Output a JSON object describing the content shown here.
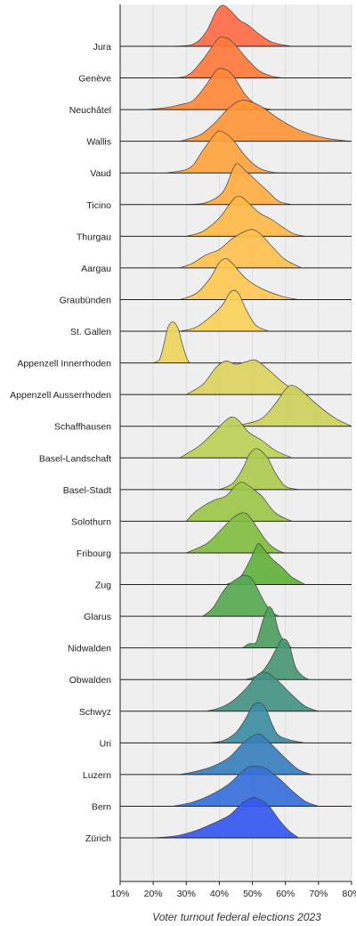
{
  "chart_data": {
    "type": "ridgeline",
    "title": "",
    "xlabel": "Voter turnout federal elections 2023",
    "ylabel": "",
    "xlim": [
      10,
      80
    ],
    "x_ticks": [
      "10%",
      "20%",
      "30%",
      "40%",
      "50%",
      "60%",
      "70%",
      "80%"
    ],
    "grid": true,
    "series": [
      {
        "name": "Jura",
        "color": "#FF6B47",
        "values": [
          [
            25,
            0
          ],
          [
            32,
            0.05
          ],
          [
            36,
            0.35
          ],
          [
            39,
            0.85
          ],
          [
            41,
            1.0
          ],
          [
            43,
            0.9
          ],
          [
            46,
            0.65
          ],
          [
            49,
            0.5
          ],
          [
            52,
            0.3
          ],
          [
            56,
            0.1
          ],
          [
            62,
            0
          ]
        ]
      },
      {
        "name": "Genève",
        "color": "#FF7A3D",
        "values": [
          [
            22,
            0
          ],
          [
            30,
            0.05
          ],
          [
            35,
            0.45
          ],
          [
            39,
            0.9
          ],
          [
            41,
            1.0
          ],
          [
            44,
            0.88
          ],
          [
            48,
            0.5
          ],
          [
            52,
            0.18
          ],
          [
            56,
            0.04
          ],
          [
            60,
            0
          ]
        ]
      },
      {
        "name": "Neuchâtel",
        "color": "#FF8838",
        "values": [
          [
            18,
            0
          ],
          [
            24,
            0.05
          ],
          [
            28,
            0.12
          ],
          [
            32,
            0.22
          ],
          [
            36,
            0.6
          ],
          [
            39,
            0.95
          ],
          [
            41,
            1.0
          ],
          [
            44,
            0.85
          ],
          [
            48,
            0.35
          ],
          [
            52,
            0.08
          ],
          [
            56,
            0
          ]
        ]
      },
      {
        "name": "Wallis",
        "color": "#FF9638",
        "values": [
          [
            28,
            0
          ],
          [
            34,
            0.15
          ],
          [
            38,
            0.4
          ],
          [
            43,
            0.82
          ],
          [
            47,
            1.0
          ],
          [
            52,
            0.88
          ],
          [
            58,
            0.55
          ],
          [
            64,
            0.28
          ],
          [
            72,
            0.08
          ],
          [
            80,
            0
          ]
        ]
      },
      {
        "name": "Vaud",
        "color": "#FFA33D",
        "values": [
          [
            24,
            0
          ],
          [
            31,
            0.12
          ],
          [
            35,
            0.55
          ],
          [
            39,
            0.98
          ],
          [
            41,
            1.0
          ],
          [
            44,
            0.82
          ],
          [
            48,
            0.4
          ],
          [
            52,
            0.12
          ],
          [
            56,
            0.02
          ],
          [
            60,
            0
          ]
        ]
      },
      {
        "name": "Ticino",
        "color": "#FFAE42",
        "values": [
          [
            30,
            0
          ],
          [
            36,
            0.05
          ],
          [
            41,
            0.3
          ],
          [
            44,
            0.85
          ],
          [
            45.5,
            1.0
          ],
          [
            48,
            0.82
          ],
          [
            51,
            0.6
          ],
          [
            55,
            0.3
          ],
          [
            58,
            0.08
          ],
          [
            62,
            0
          ]
        ]
      },
      {
        "name": "Thurgau",
        "color": "#FFB848",
        "values": [
          [
            30,
            0
          ],
          [
            35,
            0.12
          ],
          [
            40,
            0.45
          ],
          [
            44,
            0.88
          ],
          [
            46,
            0.98
          ],
          [
            48,
            0.88
          ],
          [
            52,
            0.58
          ],
          [
            56,
            0.4
          ],
          [
            62,
            0.08
          ],
          [
            66,
            0
          ]
        ]
      },
      {
        "name": "Aargau",
        "color": "#FFC04F",
        "values": [
          [
            28,
            0
          ],
          [
            32,
            0.12
          ],
          [
            36,
            0.32
          ],
          [
            40,
            0.45
          ],
          [
            44,
            0.72
          ],
          [
            49,
            0.93
          ],
          [
            52,
            0.86
          ],
          [
            56,
            0.52
          ],
          [
            60,
            0.2
          ],
          [
            65,
            0
          ]
        ]
      },
      {
        "name": "Graubünden",
        "color": "#FFC855",
        "values": [
          [
            28,
            0
          ],
          [
            33,
            0.15
          ],
          [
            37,
            0.5
          ],
          [
            40,
            0.9
          ],
          [
            42,
            1.0
          ],
          [
            44,
            0.88
          ],
          [
            48,
            0.52
          ],
          [
            53,
            0.26
          ],
          [
            59,
            0.08
          ],
          [
            64,
            0
          ]
        ]
      },
      {
        "name": "St. Gallen",
        "color": "#F8D05A",
        "values": [
          [
            28,
            0
          ],
          [
            33,
            0.1
          ],
          [
            38,
            0.4
          ],
          [
            41,
            0.65
          ],
          [
            43,
            0.92
          ],
          [
            44.5,
            1.0
          ],
          [
            46,
            0.9
          ],
          [
            48,
            0.55
          ],
          [
            51,
            0.15
          ],
          [
            55,
            0
          ]
        ]
      },
      {
        "name": "Appenzell Innerrhoden",
        "color": "#EDD55C",
        "values": [
          [
            20,
            0
          ],
          [
            22,
            0.1
          ],
          [
            23.5,
            0.55
          ],
          [
            24.5,
            0.88
          ],
          [
            26,
            1.0
          ],
          [
            27.5,
            0.85
          ],
          [
            28.5,
            0.55
          ],
          [
            30,
            0.15
          ],
          [
            31,
            0
          ]
        ]
      },
      {
        "name": "Appenzell Ausserrhoden",
        "color": "#DCD45E",
        "values": [
          [
            30,
            0
          ],
          [
            35,
            0.25
          ],
          [
            39,
            0.66
          ],
          [
            42,
            0.82
          ],
          [
            45,
            0.74
          ],
          [
            48,
            0.8
          ],
          [
            51,
            0.84
          ],
          [
            55,
            0.6
          ],
          [
            60,
            0.25
          ],
          [
            66,
            0
          ]
        ]
      },
      {
        "name": "Schaffhausen",
        "color": "#CCD05C",
        "values": [
          [
            42,
            0
          ],
          [
            48,
            0.06
          ],
          [
            53,
            0.2
          ],
          [
            57,
            0.56
          ],
          [
            60,
            0.9
          ],
          [
            62,
            1.0
          ],
          [
            65,
            0.86
          ],
          [
            70,
            0.5
          ],
          [
            75,
            0.2
          ],
          [
            80,
            0
          ]
        ]
      },
      {
        "name": "Basel-Landschaft",
        "color": "#BED059",
        "values": [
          [
            28,
            0
          ],
          [
            34,
            0.3
          ],
          [
            38,
            0.6
          ],
          [
            42,
            0.92
          ],
          [
            44,
            1.0
          ],
          [
            46,
            0.9
          ],
          [
            49,
            0.62
          ],
          [
            53,
            0.42
          ],
          [
            57,
            0.18
          ],
          [
            62,
            0
          ]
        ]
      },
      {
        "name": "Basel-Stadt",
        "color": "#AECB52",
        "values": [
          [
            40,
            0
          ],
          [
            44,
            0.15
          ],
          [
            47,
            0.5
          ],
          [
            49,
            0.85
          ],
          [
            51,
            1.0
          ],
          [
            53,
            0.92
          ],
          [
            55,
            0.72
          ],
          [
            57,
            0.4
          ],
          [
            60,
            0.08
          ],
          [
            64,
            0
          ]
        ]
      },
      {
        "name": "Solothurn",
        "color": "#9CC74A",
        "values": [
          [
            30,
            0
          ],
          [
            33,
            0.25
          ],
          [
            38,
            0.5
          ],
          [
            42,
            0.62
          ],
          [
            45,
            0.88
          ],
          [
            47,
            0.95
          ],
          [
            50,
            0.8
          ],
          [
            53,
            0.6
          ],
          [
            57,
            0.2
          ],
          [
            62,
            0
          ]
        ]
      },
      {
        "name": "Fribourg",
        "color": "#82BD40",
        "values": [
          [
            30,
            0
          ],
          [
            36,
            0.22
          ],
          [
            40,
            0.52
          ],
          [
            44,
            0.85
          ],
          [
            47,
            0.98
          ],
          [
            49,
            0.9
          ],
          [
            52,
            0.55
          ],
          [
            55,
            0.22
          ],
          [
            58,
            0.05
          ],
          [
            60,
            0
          ]
        ]
      },
      {
        "name": "Zug",
        "color": "#62B13B",
        "values": [
          [
            42,
            0
          ],
          [
            46,
            0.15
          ],
          [
            49,
            0.55
          ],
          [
            51,
            0.9
          ],
          [
            52,
            1.0
          ],
          [
            54,
            0.82
          ],
          [
            56,
            0.62
          ],
          [
            59,
            0.42
          ],
          [
            62,
            0.18
          ],
          [
            66,
            0
          ]
        ]
      },
      {
        "name": "Glarus",
        "color": "#58A854",
        "values": [
          [
            35,
            0
          ],
          [
            38,
            0.2
          ],
          [
            42,
            0.7
          ],
          [
            46,
            0.95
          ],
          [
            48,
            1.0
          ],
          [
            50,
            0.9
          ],
          [
            52,
            0.6
          ],
          [
            54,
            0.3
          ],
          [
            56,
            0.1
          ],
          [
            58,
            0
          ]
        ]
      },
      {
        "name": "Nidwalden",
        "color": "#4E9E62",
        "values": [
          [
            47,
            0
          ],
          [
            49,
            0.1
          ],
          [
            51,
            0.12
          ],
          [
            52,
            0.35
          ],
          [
            53.5,
            0.75
          ],
          [
            55,
            1.0
          ],
          [
            56.5,
            0.85
          ],
          [
            58,
            0.4
          ],
          [
            60,
            0.12
          ],
          [
            62,
            0
          ]
        ]
      },
      {
        "name": "Obwalden",
        "color": "#4A9872",
        "values": [
          [
            48,
            0
          ],
          [
            51,
            0.08
          ],
          [
            53,
            0.2
          ],
          [
            55,
            0.42
          ],
          [
            57,
            0.72
          ],
          [
            59,
            0.98
          ],
          [
            61,
            0.88
          ],
          [
            63,
            0.32
          ],
          [
            65,
            0.1
          ],
          [
            67,
            0
          ]
        ]
      },
      {
        "name": "Schwyz",
        "color": "#459284",
        "values": [
          [
            36,
            0
          ],
          [
            40,
            0.08
          ],
          [
            44,
            0.25
          ],
          [
            48,
            0.55
          ],
          [
            51,
            0.85
          ],
          [
            53,
            0.95
          ],
          [
            55,
            0.92
          ],
          [
            58,
            0.72
          ],
          [
            62,
            0.4
          ],
          [
            66,
            0.12
          ],
          [
            70,
            0
          ]
        ]
      },
      {
        "name": "Uri",
        "color": "#3E8CA4",
        "values": [
          [
            37,
            0
          ],
          [
            41,
            0.05
          ],
          [
            45,
            0.25
          ],
          [
            48,
            0.6
          ],
          [
            50,
            0.9
          ],
          [
            52,
            0.98
          ],
          [
            54,
            0.85
          ],
          [
            56,
            0.45
          ],
          [
            58,
            0.18
          ],
          [
            62,
            0.06
          ],
          [
            66,
            0
          ]
        ]
      },
      {
        "name": "Luzern",
        "color": "#3A80BE",
        "values": [
          [
            28,
            0
          ],
          [
            33,
            0.08
          ],
          [
            38,
            0.2
          ],
          [
            43,
            0.42
          ],
          [
            47,
            0.75
          ],
          [
            51,
            0.98
          ],
          [
            53,
            0.95
          ],
          [
            56,
            0.72
          ],
          [
            60,
            0.4
          ],
          [
            64,
            0.12
          ],
          [
            68,
            0
          ]
        ]
      },
      {
        "name": "Bern",
        "color": "#3670D8",
        "values": [
          [
            26,
            0
          ],
          [
            32,
            0.1
          ],
          [
            38,
            0.3
          ],
          [
            43,
            0.55
          ],
          [
            47,
            0.85
          ],
          [
            50,
            0.98
          ],
          [
            54,
            0.92
          ],
          [
            58,
            0.68
          ],
          [
            62,
            0.38
          ],
          [
            66,
            0.12
          ],
          [
            70,
            0
          ]
        ]
      },
      {
        "name": "Zürich",
        "color": "#3558F0",
        "values": [
          [
            20,
            0
          ],
          [
            27,
            0.05
          ],
          [
            33,
            0.18
          ],
          [
            38,
            0.35
          ],
          [
            43,
            0.55
          ],
          [
            47,
            0.85
          ],
          [
            50,
            0.98
          ],
          [
            52,
            0.95
          ],
          [
            55,
            0.78
          ],
          [
            58,
            0.45
          ],
          [
            61,
            0.18
          ],
          [
            64,
            0
          ]
        ]
      }
    ]
  }
}
